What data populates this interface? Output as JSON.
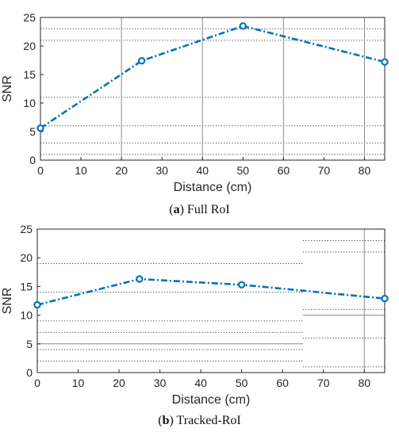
{
  "captions": [
    {
      "letter": "a",
      "text": "Full RoI"
    },
    {
      "letter": "b",
      "text": "Tracked-RoI"
    }
  ],
  "chart_data": [
    {
      "type": "line",
      "xlabel": "Distance (cm)",
      "ylabel": "SNR",
      "xlim": [
        0,
        85
      ],
      "ylim": [
        0,
        25
      ],
      "xticks": [
        0,
        10,
        20,
        30,
        40,
        50,
        60,
        70,
        80
      ],
      "yticks": [
        0,
        5,
        10,
        15,
        20,
        25
      ],
      "line_color": "#0072BD",
      "line_style": "dash-dot",
      "marker": "circle",
      "series": [
        {
          "x": [
            0,
            25,
            50,
            85
          ],
          "y": [
            5.6,
            17.4,
            23.5,
            17.2
          ]
        }
      ],
      "vertical_gridlines": [
        20,
        40,
        60,
        80
      ],
      "dotted_h_gridlines": [
        1,
        3,
        6,
        11,
        21,
        23
      ]
    },
    {
      "type": "line",
      "xlabel": "Distance (cm)",
      "ylabel": "SNR",
      "xlim": [
        0,
        85
      ],
      "ylim": [
        0,
        25
      ],
      "xticks": [
        0,
        10,
        20,
        30,
        40,
        50,
        60,
        70,
        80
      ],
      "yticks": [
        0,
        5,
        10,
        15,
        20,
        25
      ],
      "line_color": "#0072BD",
      "line_style": "dash-dot",
      "marker": "circle",
      "series": [
        {
          "x": [
            0,
            25,
            50,
            85
          ],
          "y": [
            11.8,
            16.3,
            15.3,
            12.9
          ]
        }
      ],
      "left_region_end": 65,
      "left_dotted_h_gridlines": [
        2,
        4,
        7,
        9,
        14,
        19
      ],
      "left_solid_h_gridlines": [
        5
      ],
      "right_dotted_h_gridlines": [
        1,
        6,
        11,
        21,
        23
      ],
      "right_solid_h_gridlines": [
        10
      ],
      "vertical_gridlines": [
        80
      ]
    }
  ]
}
